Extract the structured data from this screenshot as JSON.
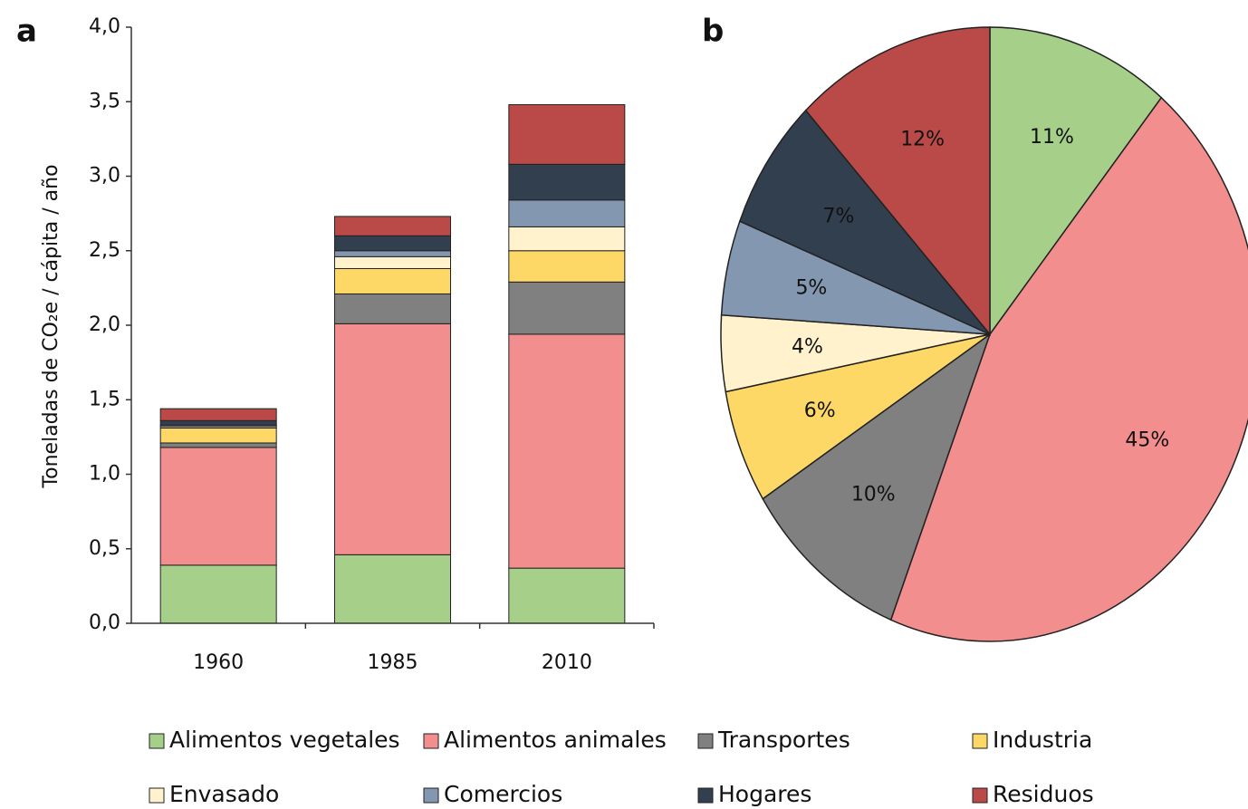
{
  "chart_data": [
    {
      "type": "stacked-bar",
      "panel": "a",
      "y_label": "Toneladas de CO₂e / cápita / año",
      "categories": [
        "1960",
        "1985",
        "2010"
      ],
      "ylim": [
        0,
        4
      ],
      "yticks": [
        {
          "value": 0,
          "label": "0,0"
        },
        {
          "value": 0.5,
          "label": "0,5"
        },
        {
          "value": 1,
          "label": "1,0"
        },
        {
          "value": 1.5,
          "label": "1,5"
        },
        {
          "value": 2,
          "label": "2,0"
        },
        {
          "value": 2.5,
          "label": "2,5"
        },
        {
          "value": 3,
          "label": "3,0"
        },
        {
          "value": 3.5,
          "label": "3,5"
        },
        {
          "value": 4,
          "label": "4,0"
        }
      ],
      "series": [
        {
          "name": "Alimentos vegetales",
          "color": "#a6cf8a",
          "values": [
            0.39,
            0.46,
            0.37
          ]
        },
        {
          "name": "Alimentos animales",
          "color": "#f28e8e",
          "values": [
            0.79,
            1.55,
            1.57
          ]
        },
        {
          "name": "Transportes",
          "color": "#808080",
          "values": [
            0.03,
            0.2,
            0.35
          ]
        },
        {
          "name": "Industria",
          "color": "#fdd866",
          "values": [
            0.1,
            0.17,
            0.21
          ]
        },
        {
          "name": "Envasado",
          "color": "#fff2cc",
          "values": [
            0.01,
            0.08,
            0.16
          ]
        },
        {
          "name": "Comercios",
          "color": "#8497b0",
          "values": [
            0.01,
            0.04,
            0.18
          ]
        },
        {
          "name": "Hogares",
          "color": "#323f4f",
          "values": [
            0.03,
            0.1,
            0.24
          ]
        },
        {
          "name": "Residuos",
          "color": "#b94a48",
          "values": [
            0.08,
            0.13,
            0.4
          ]
        }
      ]
    },
    {
      "type": "pie",
      "panel": "b",
      "values": [
        11,
        45,
        10,
        6,
        4,
        5,
        7,
        12
      ],
      "value_labels": [
        "11%",
        "45%",
        "10%",
        "6%",
        "4%",
        "5%",
        "7%",
        "12%"
      ],
      "colors": [
        "#a6cf8a",
        "#f28e8e",
        "#808080",
        "#fdd866",
        "#fff2cc",
        "#8497b0",
        "#323f4f",
        "#b94a48"
      ]
    }
  ]
}
